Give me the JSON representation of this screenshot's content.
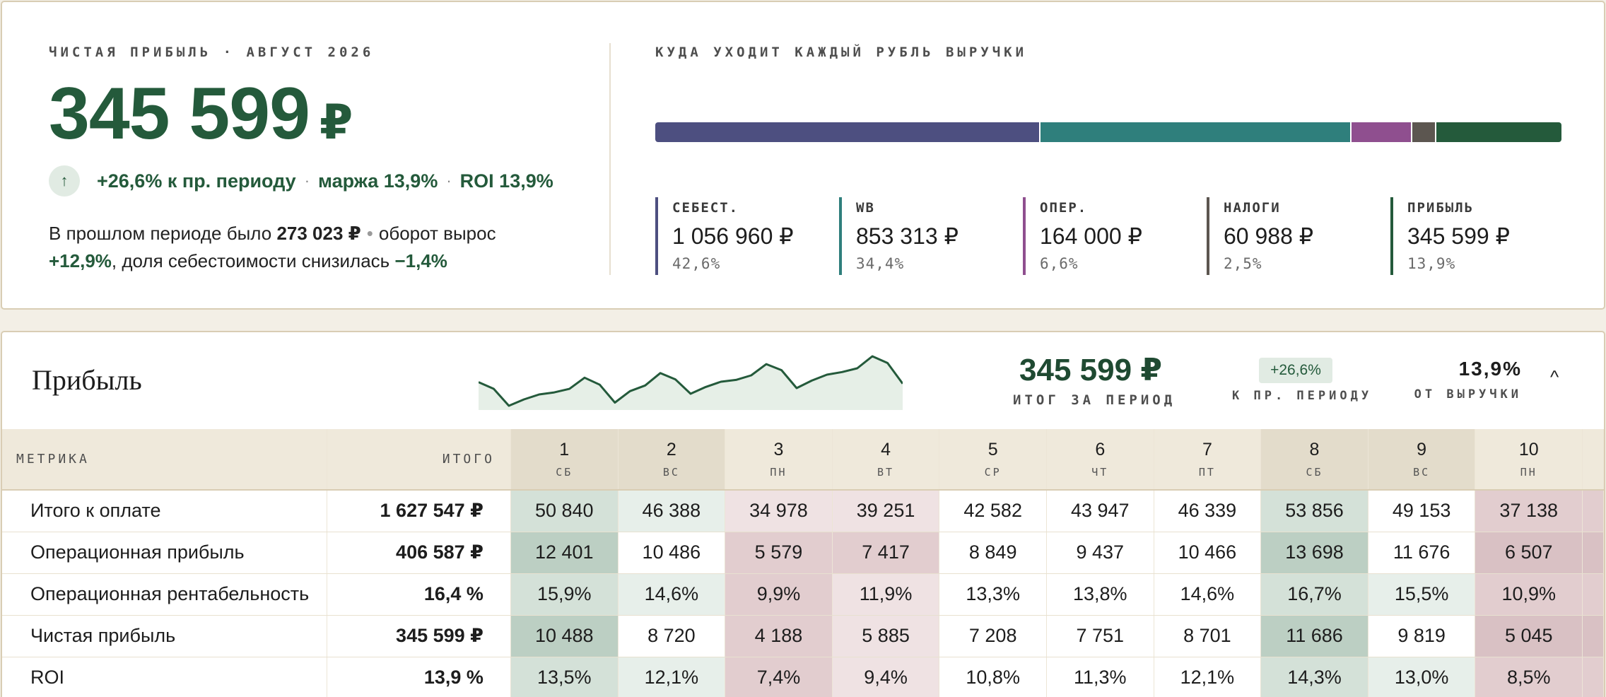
{
  "kpi": {
    "eyebrow": "ЧИСТАЯ ПРИБЫЛЬ · АВГУСТ 2026",
    "value": "345 599",
    "currency": "₽",
    "arrow": "↑",
    "delta": "+26,6% к пр. периоду",
    "margin": "маржа 13,9%",
    "roi": "ROI 13,9%",
    "desc_prefix": "В прошлом периоде было",
    "prev_value": "273 023 ₽",
    "desc_turnover": "оборот вырос",
    "turnover_delta": "+12,9%",
    "desc_cost": ", доля себестоимости снизилась",
    "cost_delta": "−1,4%"
  },
  "distribution": {
    "eyebrow": "КУДА УХОДИТ КАЖДЫЙ РУБЛЬ ВЫРУЧКИ",
    "segments": [
      {
        "label": "СЕБЕСТ.",
        "value": "1 056 960 ₽",
        "pct": "42,6%",
        "share": 42.6,
        "color": "#4d4f80"
      },
      {
        "label": "WB",
        "value": "853 313 ₽",
        "pct": "34,4%",
        "share": 34.4,
        "color": "#2f7f7c"
      },
      {
        "label": "ОПЕР.",
        "value": "164 000 ₽",
        "pct": "6,6%",
        "share": 6.6,
        "color": "#8f4f8f"
      },
      {
        "label": "НАЛОГИ",
        "value": "60 988 ₽",
        "pct": "2,5%",
        "share": 2.5,
        "color": "#5c5650"
      },
      {
        "label": "ПРИБЫЛЬ",
        "value": "345 599 ₽",
        "pct": "13,9%",
        "share": 13.9,
        "color": "#245a3b"
      }
    ]
  },
  "profit_section": {
    "title": "Прибыль",
    "total_value": "345 599 ₽",
    "total_label": "ИТОГ ЗА ПЕРИОД",
    "delta": "+26,6%",
    "delta_label": "К ПР. ПЕРИОДУ",
    "share": "13,9%",
    "share_label": "ОТ ВЫРУЧКИ",
    "chevron": "^",
    "sparkline": [
      10488,
      8720,
      4188,
      5885,
      7208,
      7751,
      8701,
      11686,
      9819,
      5045,
      8100,
      9600,
      12900,
      11200,
      7400,
      9200,
      10600,
      11100,
      12300,
      15300,
      13700,
      8900,
      10900,
      12500,
      13200,
      14200,
      17400,
      15600,
      10100
    ]
  },
  "table": {
    "metric_header": "МЕТРИКА",
    "total_header": "ИТОГО",
    "days": [
      {
        "num": "1",
        "dow": "СБ",
        "weekend": true
      },
      {
        "num": "2",
        "dow": "ВС",
        "weekend": true
      },
      {
        "num": "3",
        "dow": "ПН",
        "weekend": false
      },
      {
        "num": "4",
        "dow": "ВТ",
        "weekend": false
      },
      {
        "num": "5",
        "dow": "СР",
        "weekend": false
      },
      {
        "num": "6",
        "dow": "ЧТ",
        "weekend": false
      },
      {
        "num": "7",
        "dow": "ПТ",
        "weekend": false
      },
      {
        "num": "8",
        "dow": "СБ",
        "weekend": true
      },
      {
        "num": "9",
        "dow": "ВС",
        "weekend": true
      },
      {
        "num": "10",
        "dow": "ПН",
        "weekend": false
      }
    ],
    "rows": [
      {
        "metric": "Итого к оплате",
        "total": "1 627 547 ₽",
        "cells": [
          "50 840",
          "46 388",
          "34 978",
          "39 251",
          "42 582",
          "43 947",
          "46 339",
          "53 856",
          "49 153",
          "37 138"
        ],
        "tones": [
          "g2",
          "g1",
          "r1",
          "r1",
          "n",
          "n",
          "n",
          "g2",
          "n",
          "r2"
        ]
      },
      {
        "metric": "Операционная прибыль",
        "total": "406 587 ₽",
        "cells": [
          "12 401",
          "10 486",
          "5 579",
          "7 417",
          "8 849",
          "9 437",
          "10 466",
          "13 698",
          "11 676",
          "6 507"
        ],
        "tones": [
          "g3",
          "n",
          "r2",
          "r2",
          "n",
          "n",
          "n",
          "g3",
          "n",
          "r3"
        ]
      },
      {
        "metric": "Операционная рентабельность",
        "total": "16,4 %",
        "cells": [
          "15,9%",
          "14,6%",
          "9,9%",
          "11,9%",
          "13,3%",
          "13,8%",
          "14,6%",
          "16,7%",
          "15,5%",
          "10,9%"
        ],
        "tones": [
          "g2",
          "g1",
          "r2",
          "r1",
          "n",
          "n",
          "n",
          "g2",
          "g1",
          "r2"
        ]
      },
      {
        "metric": "Чистая прибыль",
        "total": "345 599 ₽",
        "cells": [
          "10 488",
          "8 720",
          "4 188",
          "5 885",
          "7 208",
          "7 751",
          "8 701",
          "11 686",
          "9 819",
          "5 045"
        ],
        "tones": [
          "g3",
          "n",
          "r2",
          "r1",
          "n",
          "n",
          "n",
          "g3",
          "n",
          "r3"
        ]
      },
      {
        "metric": "ROI",
        "total": "13,9 %",
        "cells": [
          "13,5%",
          "12,1%",
          "7,4%",
          "9,4%",
          "10,8%",
          "11,3%",
          "12,1%",
          "14,3%",
          "13,0%",
          "8,5%"
        ],
        "tones": [
          "g2",
          "g1",
          "r2",
          "r1",
          "n",
          "n",
          "n",
          "g2",
          "g1",
          "r2"
        ]
      }
    ]
  }
}
